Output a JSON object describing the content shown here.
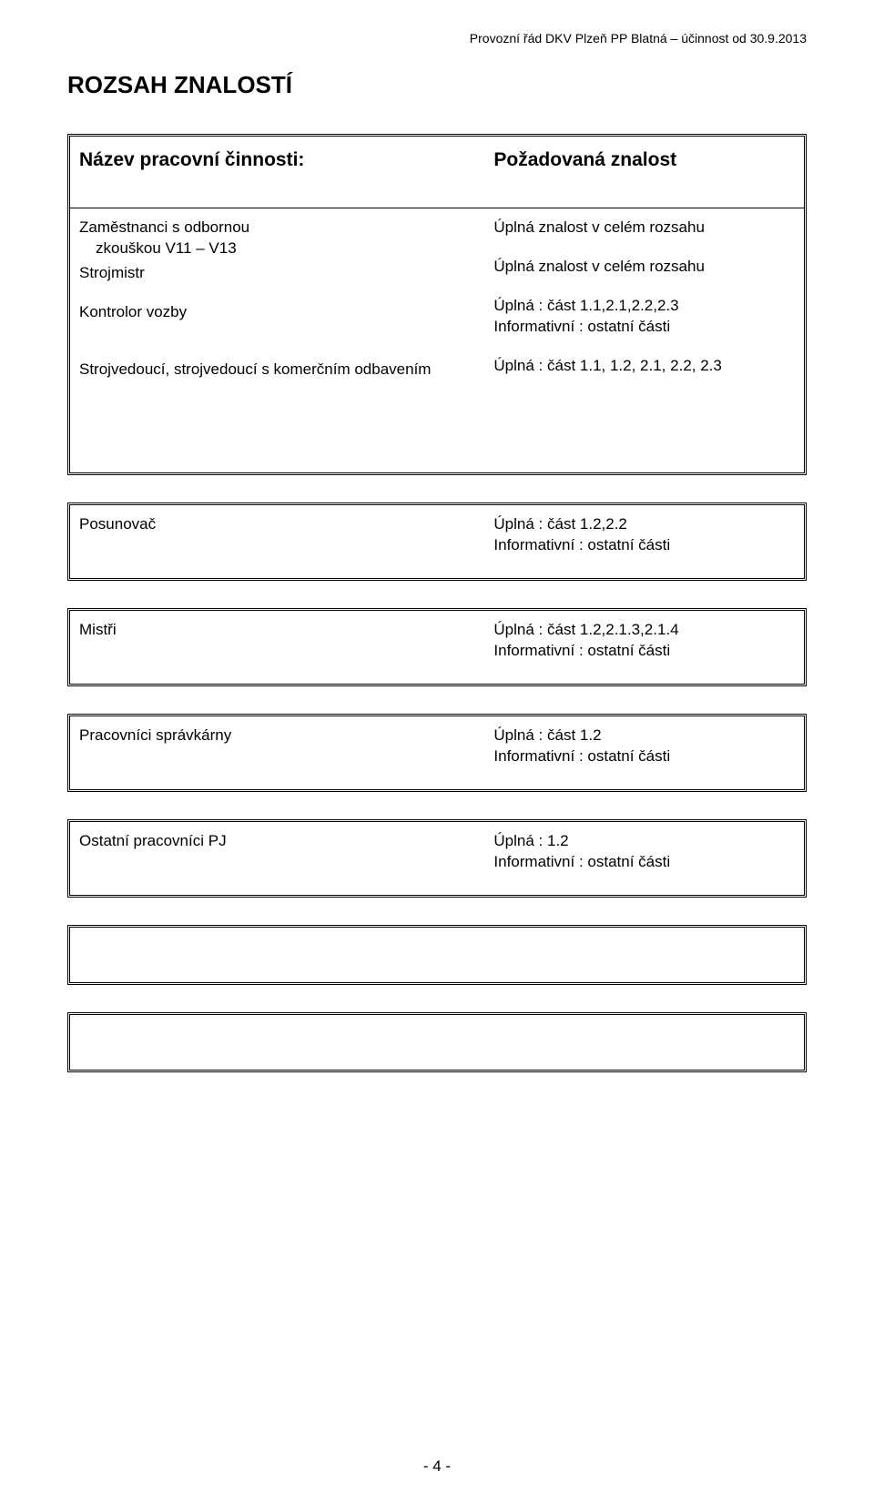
{
  "running_header": "Provozní řád  DKV Plzeň PP  Blatná – účinnost od 30.9.2013",
  "main_heading": "ROZSAH ZNALOSTÍ",
  "colors": {
    "text": "#000000",
    "background": "#ffffff",
    "border": "#000000"
  },
  "box1": {
    "header_left": "Název pracovní činnosti:",
    "header_right": "Požadovaná znalost",
    "left_line1": "Zaměstnanci s odbornou",
    "left_line2": "zkouškou V11 – V13",
    "left_line3": "Strojmistr",
    "left_line4": "Kontrolor vozby",
    "left_line5": "Strojvedoucí, strojvedoucí s komerčním odbavením",
    "right_line1": "Úplná znalost v celém rozsahu",
    "right_line2": "Úplná znalost v celém rozsahu",
    "right_line3": "Úplná : část 1.1,2.1,2.2,2.3",
    "right_line4": "Informativní  :   ostatní části",
    "right_line5": "Úplná : část 1.1, 1.2, 2.1, 2.2, 2.3"
  },
  "box2": {
    "left": "Posunovač",
    "right_line1": "Úplná : část 1.2,2.2",
    "right_line2": "Informativní : ostatní části"
  },
  "box3": {
    "left": "Mistři",
    "right_line1": "Úplná : část 1.2,2.1.3,2.1.4",
    "right_line2": "Informativní  : ostatní části"
  },
  "box4": {
    "left": "Pracovníci správkárny",
    "right_line1": "Úplná : část 1.2",
    "right_line2": "Informativní  : ostatní části"
  },
  "box5": {
    "left": "Ostatní pracovníci PJ",
    "right_line1": "Úplná : 1.2",
    "right_line2": "Informativní  : ostatní části"
  },
  "page_number": "- 4 -"
}
